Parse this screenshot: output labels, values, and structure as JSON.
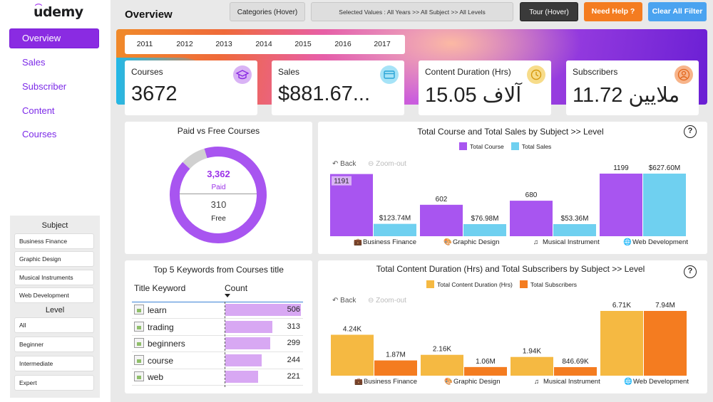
{
  "brand": {
    "logo_text": "udemy"
  },
  "header": {
    "title": "Overview",
    "categories_button": "Categories (Hover)",
    "selected_values": "Selected Values : All Years >> All Subject >> All Levels",
    "tour_button": "Tour (Hover)",
    "help_button": "Need Help ?",
    "clear_button": "Clear All Filter",
    "colors": {
      "help": "#f47c20",
      "clear": "#4aa3f0",
      "tour": "#3a3a3a",
      "accent": "#8a2be2"
    }
  },
  "sidebar": {
    "nav": [
      {
        "label": "Overview",
        "active": true
      },
      {
        "label": "Sales",
        "active": false
      },
      {
        "label": "Subscriber",
        "active": false
      },
      {
        "label": "Content",
        "active": false
      },
      {
        "label": "Courses",
        "active": false
      }
    ],
    "subject_title": "Subject",
    "subjects": [
      "Business Finance",
      "Graphic Design",
      "Musical Instruments",
      "Web Development"
    ],
    "level_title": "Level",
    "levels": [
      "All",
      "Beginner",
      "Intermediate",
      "Expert"
    ]
  },
  "years": [
    "2011",
    "2012",
    "2013",
    "2014",
    "2015",
    "2016",
    "2017"
  ],
  "kpis": [
    {
      "label": "Courses",
      "value": "3672",
      "icon": "graduation-cap-icon",
      "icon_color": "#d9b3f5"
    },
    {
      "label": "Sales",
      "value": "$881.67...",
      "icon": "credit-card-icon",
      "icon_color": "#a6e3f7"
    },
    {
      "label": "Content Duration (Hrs)",
      "value": "15.05 آلاف",
      "icon": "clock-icon",
      "icon_color": "#f7dc8a"
    },
    {
      "label": "Subscribers",
      "value": "11.72 ملايين",
      "icon": "user-icon",
      "icon_color": "#f7b48a"
    }
  ],
  "paid_free": {
    "title": "Paid vs Free Courses",
    "paid_value": "3,362",
    "paid_label": "Paid",
    "free_value": "310",
    "free_label": "Free",
    "chart_data": {
      "type": "pie",
      "categories": [
        "Paid",
        "Free"
      ],
      "values": [
        3362,
        310
      ],
      "colors": [
        "#a855f0",
        "#d0d0d0"
      ]
    }
  },
  "sales_chart": {
    "title": "Total Course and Total Sales by Subject >> Level",
    "back_label": "Back",
    "zoom_label": "Zoom-out",
    "series_labels": [
      "1191",
      "$123.74M",
      "602",
      "$76.98M",
      "680",
      "$53.36M",
      "1199",
      "$627.60M"
    ],
    "chart_data": {
      "type": "bar",
      "categories": [
        "Business Finance",
        "Graphic Design",
        "Musical Instrument",
        "Web Development"
      ],
      "series": [
        {
          "name": "Total Course",
          "values": [
            1191,
            602,
            680,
            1199
          ],
          "color": "#a855f0"
        },
        {
          "name": "Total Sales",
          "values": [
            123.74,
            76.98,
            53.36,
            627.6
          ],
          "color": "#6fd0f0"
        }
      ]
    }
  },
  "keywords": {
    "title": "Top 5 Keywords from Courses title",
    "col_keyword": "Title Keyword",
    "col_count": "Count",
    "rows": [
      {
        "keyword": "learn",
        "count": 506
      },
      {
        "keyword": "trading",
        "count": 313
      },
      {
        "keyword": "beginners",
        "count": 299
      },
      {
        "keyword": "course",
        "count": 244
      },
      {
        "keyword": "web",
        "count": 221
      }
    ]
  },
  "duration_chart": {
    "title": "Total Content Duration (Hrs) and Total Subscribers by Subject >> Level",
    "back_label": "Back",
    "zoom_label": "Zoom-out",
    "series_labels": [
      "4.24K",
      "1.87M",
      "2.16K",
      "1.06M",
      "1.94K",
      "846.69K",
      "6.71K",
      "7.94M"
    ],
    "chart_data": {
      "type": "bar",
      "categories": [
        "Business Finance",
        "Graphic Design",
        "Musical Instrument",
        "Web Development"
      ],
      "series": [
        {
          "name": "Total Content Duration (Hrs)",
          "values": [
            4240,
            2160,
            1940,
            6710
          ],
          "color": "#f5b942"
        },
        {
          "name": "Total Subscribers",
          "values": [
            1.87,
            1.06,
            0.84669,
            7.94
          ],
          "color": "#f47c20"
        }
      ]
    }
  }
}
